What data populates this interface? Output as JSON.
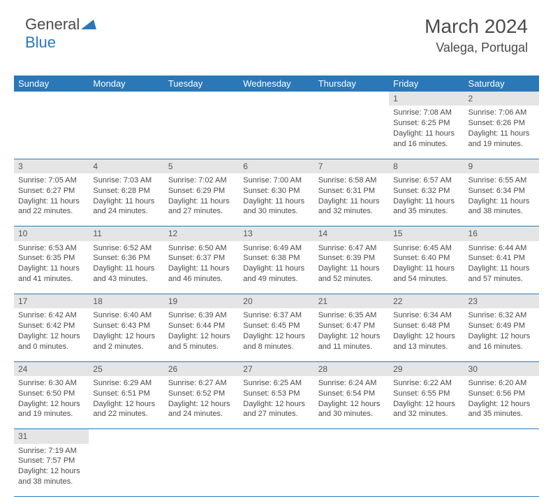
{
  "logo": {
    "part1": "General",
    "part2": "Blue"
  },
  "header": {
    "month": "March 2024",
    "location": "Valega, Portugal"
  },
  "colors": {
    "header_bg": "#2a78b8",
    "header_text": "#ffffff",
    "daynum_bg": "#e5e5e5",
    "text": "#4a4a4a",
    "row_border": "#2a78b8"
  },
  "weekdays": [
    "Sunday",
    "Monday",
    "Tuesday",
    "Wednesday",
    "Thursday",
    "Friday",
    "Saturday"
  ],
  "weeks": [
    {
      "days": [
        null,
        null,
        null,
        null,
        null,
        {
          "n": "1",
          "sr": "Sunrise: 7:08 AM",
          "ss": "Sunset: 6:25 PM",
          "dl": "Daylight: 11 hours and 16 minutes."
        },
        {
          "n": "2",
          "sr": "Sunrise: 7:06 AM",
          "ss": "Sunset: 6:26 PM",
          "dl": "Daylight: 11 hours and 19 minutes."
        }
      ]
    },
    {
      "days": [
        {
          "n": "3",
          "sr": "Sunrise: 7:05 AM",
          "ss": "Sunset: 6:27 PM",
          "dl": "Daylight: 11 hours and 22 minutes."
        },
        {
          "n": "4",
          "sr": "Sunrise: 7:03 AM",
          "ss": "Sunset: 6:28 PM",
          "dl": "Daylight: 11 hours and 24 minutes."
        },
        {
          "n": "5",
          "sr": "Sunrise: 7:02 AM",
          "ss": "Sunset: 6:29 PM",
          "dl": "Daylight: 11 hours and 27 minutes."
        },
        {
          "n": "6",
          "sr": "Sunrise: 7:00 AM",
          "ss": "Sunset: 6:30 PM",
          "dl": "Daylight: 11 hours and 30 minutes."
        },
        {
          "n": "7",
          "sr": "Sunrise: 6:58 AM",
          "ss": "Sunset: 6:31 PM",
          "dl": "Daylight: 11 hours and 32 minutes."
        },
        {
          "n": "8",
          "sr": "Sunrise: 6:57 AM",
          "ss": "Sunset: 6:32 PM",
          "dl": "Daylight: 11 hours and 35 minutes."
        },
        {
          "n": "9",
          "sr": "Sunrise: 6:55 AM",
          "ss": "Sunset: 6:34 PM",
          "dl": "Daylight: 11 hours and 38 minutes."
        }
      ]
    },
    {
      "days": [
        {
          "n": "10",
          "sr": "Sunrise: 6:53 AM",
          "ss": "Sunset: 6:35 PM",
          "dl": "Daylight: 11 hours and 41 minutes."
        },
        {
          "n": "11",
          "sr": "Sunrise: 6:52 AM",
          "ss": "Sunset: 6:36 PM",
          "dl": "Daylight: 11 hours and 43 minutes."
        },
        {
          "n": "12",
          "sr": "Sunrise: 6:50 AM",
          "ss": "Sunset: 6:37 PM",
          "dl": "Daylight: 11 hours and 46 minutes."
        },
        {
          "n": "13",
          "sr": "Sunrise: 6:49 AM",
          "ss": "Sunset: 6:38 PM",
          "dl": "Daylight: 11 hours and 49 minutes."
        },
        {
          "n": "14",
          "sr": "Sunrise: 6:47 AM",
          "ss": "Sunset: 6:39 PM",
          "dl": "Daylight: 11 hours and 52 minutes."
        },
        {
          "n": "15",
          "sr": "Sunrise: 6:45 AM",
          "ss": "Sunset: 6:40 PM",
          "dl": "Daylight: 11 hours and 54 minutes."
        },
        {
          "n": "16",
          "sr": "Sunrise: 6:44 AM",
          "ss": "Sunset: 6:41 PM",
          "dl": "Daylight: 11 hours and 57 minutes."
        }
      ]
    },
    {
      "days": [
        {
          "n": "17",
          "sr": "Sunrise: 6:42 AM",
          "ss": "Sunset: 6:42 PM",
          "dl": "Daylight: 12 hours and 0 minutes."
        },
        {
          "n": "18",
          "sr": "Sunrise: 6:40 AM",
          "ss": "Sunset: 6:43 PM",
          "dl": "Daylight: 12 hours and 2 minutes."
        },
        {
          "n": "19",
          "sr": "Sunrise: 6:39 AM",
          "ss": "Sunset: 6:44 PM",
          "dl": "Daylight: 12 hours and 5 minutes."
        },
        {
          "n": "20",
          "sr": "Sunrise: 6:37 AM",
          "ss": "Sunset: 6:45 PM",
          "dl": "Daylight: 12 hours and 8 minutes."
        },
        {
          "n": "21",
          "sr": "Sunrise: 6:35 AM",
          "ss": "Sunset: 6:47 PM",
          "dl": "Daylight: 12 hours and 11 minutes."
        },
        {
          "n": "22",
          "sr": "Sunrise: 6:34 AM",
          "ss": "Sunset: 6:48 PM",
          "dl": "Daylight: 12 hours and 13 minutes."
        },
        {
          "n": "23",
          "sr": "Sunrise: 6:32 AM",
          "ss": "Sunset: 6:49 PM",
          "dl": "Daylight: 12 hours and 16 minutes."
        }
      ]
    },
    {
      "days": [
        {
          "n": "24",
          "sr": "Sunrise: 6:30 AM",
          "ss": "Sunset: 6:50 PM",
          "dl": "Daylight: 12 hours and 19 minutes."
        },
        {
          "n": "25",
          "sr": "Sunrise: 6:29 AM",
          "ss": "Sunset: 6:51 PM",
          "dl": "Daylight: 12 hours and 22 minutes."
        },
        {
          "n": "26",
          "sr": "Sunrise: 6:27 AM",
          "ss": "Sunset: 6:52 PM",
          "dl": "Daylight: 12 hours and 24 minutes."
        },
        {
          "n": "27",
          "sr": "Sunrise: 6:25 AM",
          "ss": "Sunset: 6:53 PM",
          "dl": "Daylight: 12 hours and 27 minutes."
        },
        {
          "n": "28",
          "sr": "Sunrise: 6:24 AM",
          "ss": "Sunset: 6:54 PM",
          "dl": "Daylight: 12 hours and 30 minutes."
        },
        {
          "n": "29",
          "sr": "Sunrise: 6:22 AM",
          "ss": "Sunset: 6:55 PM",
          "dl": "Daylight: 12 hours and 32 minutes."
        },
        {
          "n": "30",
          "sr": "Sunrise: 6:20 AM",
          "ss": "Sunset: 6:56 PM",
          "dl": "Daylight: 12 hours and 35 minutes."
        }
      ]
    },
    {
      "days": [
        {
          "n": "31",
          "sr": "Sunrise: 7:19 AM",
          "ss": "Sunset: 7:57 PM",
          "dl": "Daylight: 12 hours and 38 minutes."
        },
        null,
        null,
        null,
        null,
        null,
        null
      ]
    }
  ]
}
